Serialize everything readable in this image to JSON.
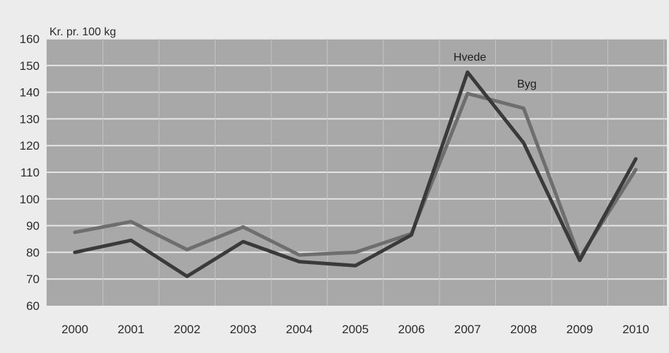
{
  "chart_data": {
    "type": "line",
    "title": "",
    "xlabel": "",
    "ylabel": "Kr. pr. 100 kg",
    "x": [
      "2000",
      "2001",
      "2002",
      "2003",
      "2004",
      "2005",
      "2006",
      "2007",
      "2008",
      "2009",
      "2010"
    ],
    "ylim": [
      60,
      160
    ],
    "yticks": [
      60,
      70,
      80,
      90,
      100,
      110,
      120,
      130,
      140,
      150,
      160
    ],
    "grid": true,
    "legend": "inline labels",
    "series": [
      {
        "name": "Hvede",
        "color": "#3a3a3a",
        "values": [
          80,
          84.5,
          71,
          84,
          76.5,
          75,
          86.5,
          147.5,
          121,
          77,
          115
        ]
      },
      {
        "name": "Byg",
        "color": "#6e6e6e",
        "values": [
          87.5,
          91.5,
          81,
          89.5,
          79,
          80,
          87,
          139.5,
          134,
          78,
          111
        ]
      }
    ]
  }
}
